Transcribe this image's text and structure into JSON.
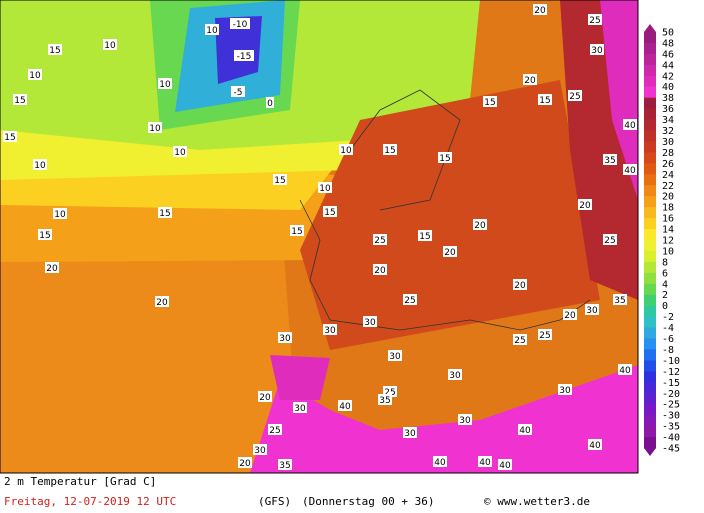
{
  "map": {
    "variable": "2 m Temperatur [Grad C]",
    "valid_time": "Freitag, 12-07-2019  12 UTC",
    "model": "(GFS)",
    "run": "(Donnerstag 00 + 36)",
    "source": "© www.wetter3.de",
    "legend": {
      "levels": [
        {
          "value": 50,
          "color": "#9a1c7e"
        },
        {
          "value": 48,
          "color": "#ab2090"
        },
        {
          "value": 46,
          "color": "#bc249c"
        },
        {
          "value": 44,
          "color": "#cf28aa"
        },
        {
          "value": 42,
          "color": "#e02cbc"
        },
        {
          "value": 40,
          "color": "#f032d0"
        },
        {
          "value": 38,
          "color": "#9c1e3c"
        },
        {
          "value": 36,
          "color": "#a82236"
        },
        {
          "value": 34,
          "color": "#b42830"
        },
        {
          "value": 32,
          "color": "#c0302a"
        },
        {
          "value": 30,
          "color": "#cc3a22"
        },
        {
          "value": 28,
          "color": "#d84818"
        },
        {
          "value": 26,
          "color": "#e05a12"
        },
        {
          "value": 24,
          "color": "#e87010"
        },
        {
          "value": 22,
          "color": "#f08818"
        },
        {
          "value": 20,
          "color": "#f4a018"
        },
        {
          "value": 18,
          "color": "#f8b820"
        },
        {
          "value": 16,
          "color": "#fcd020"
        },
        {
          "value": 14,
          "color": "#fce828"
        },
        {
          "value": 12,
          "color": "#f0f030"
        },
        {
          "value": 10,
          "color": "#d8f030"
        },
        {
          "value": 8,
          "color": "#b4e838"
        },
        {
          "value": 6,
          "color": "#90e040"
        },
        {
          "value": 4,
          "color": "#68d850"
        },
        {
          "value": 2,
          "color": "#40d070"
        },
        {
          "value": 0,
          "color": "#30c8a0"
        },
        {
          "value": -2,
          "color": "#30c0c8"
        },
        {
          "value": -4,
          "color": "#30a8e0"
        },
        {
          "value": -6,
          "color": "#2890f0"
        },
        {
          "value": -8,
          "color": "#2070f0"
        },
        {
          "value": -10,
          "color": "#2050e8"
        },
        {
          "value": -12,
          "color": "#3030e0"
        },
        {
          "value": -15,
          "color": "#4828d8"
        },
        {
          "value": -20,
          "color": "#6020d0"
        },
        {
          "value": -25,
          "color": "#7818c8"
        },
        {
          "value": -30,
          "color": "#8818b8"
        },
        {
          "value": -35,
          "color": "#9018a8"
        },
        {
          "value": -40,
          "color": "#7a1090"
        },
        {
          "value": -45,
          "color": "#640c80"
        }
      ]
    },
    "labels": [
      -10,
      -15,
      -5,
      0,
      10,
      10,
      10,
      10,
      15,
      10,
      15,
      15,
      10,
      10,
      15,
      15,
      10,
      20,
      20,
      10,
      10,
      15,
      15,
      15,
      20,
      15,
      25,
      20,
      25,
      30,
      40,
      35,
      40,
      20,
      25,
      35,
      30,
      20,
      20,
      25,
      20,
      20,
      25,
      30,
      30,
      30,
      30,
      30,
      25,
      25,
      25,
      35,
      40,
      30,
      20,
      25,
      30,
      20,
      35,
      30,
      30,
      40,
      30,
      40,
      40,
      40,
      40,
      40,
      15,
      20,
      15,
      15,
      15
    ]
  }
}
